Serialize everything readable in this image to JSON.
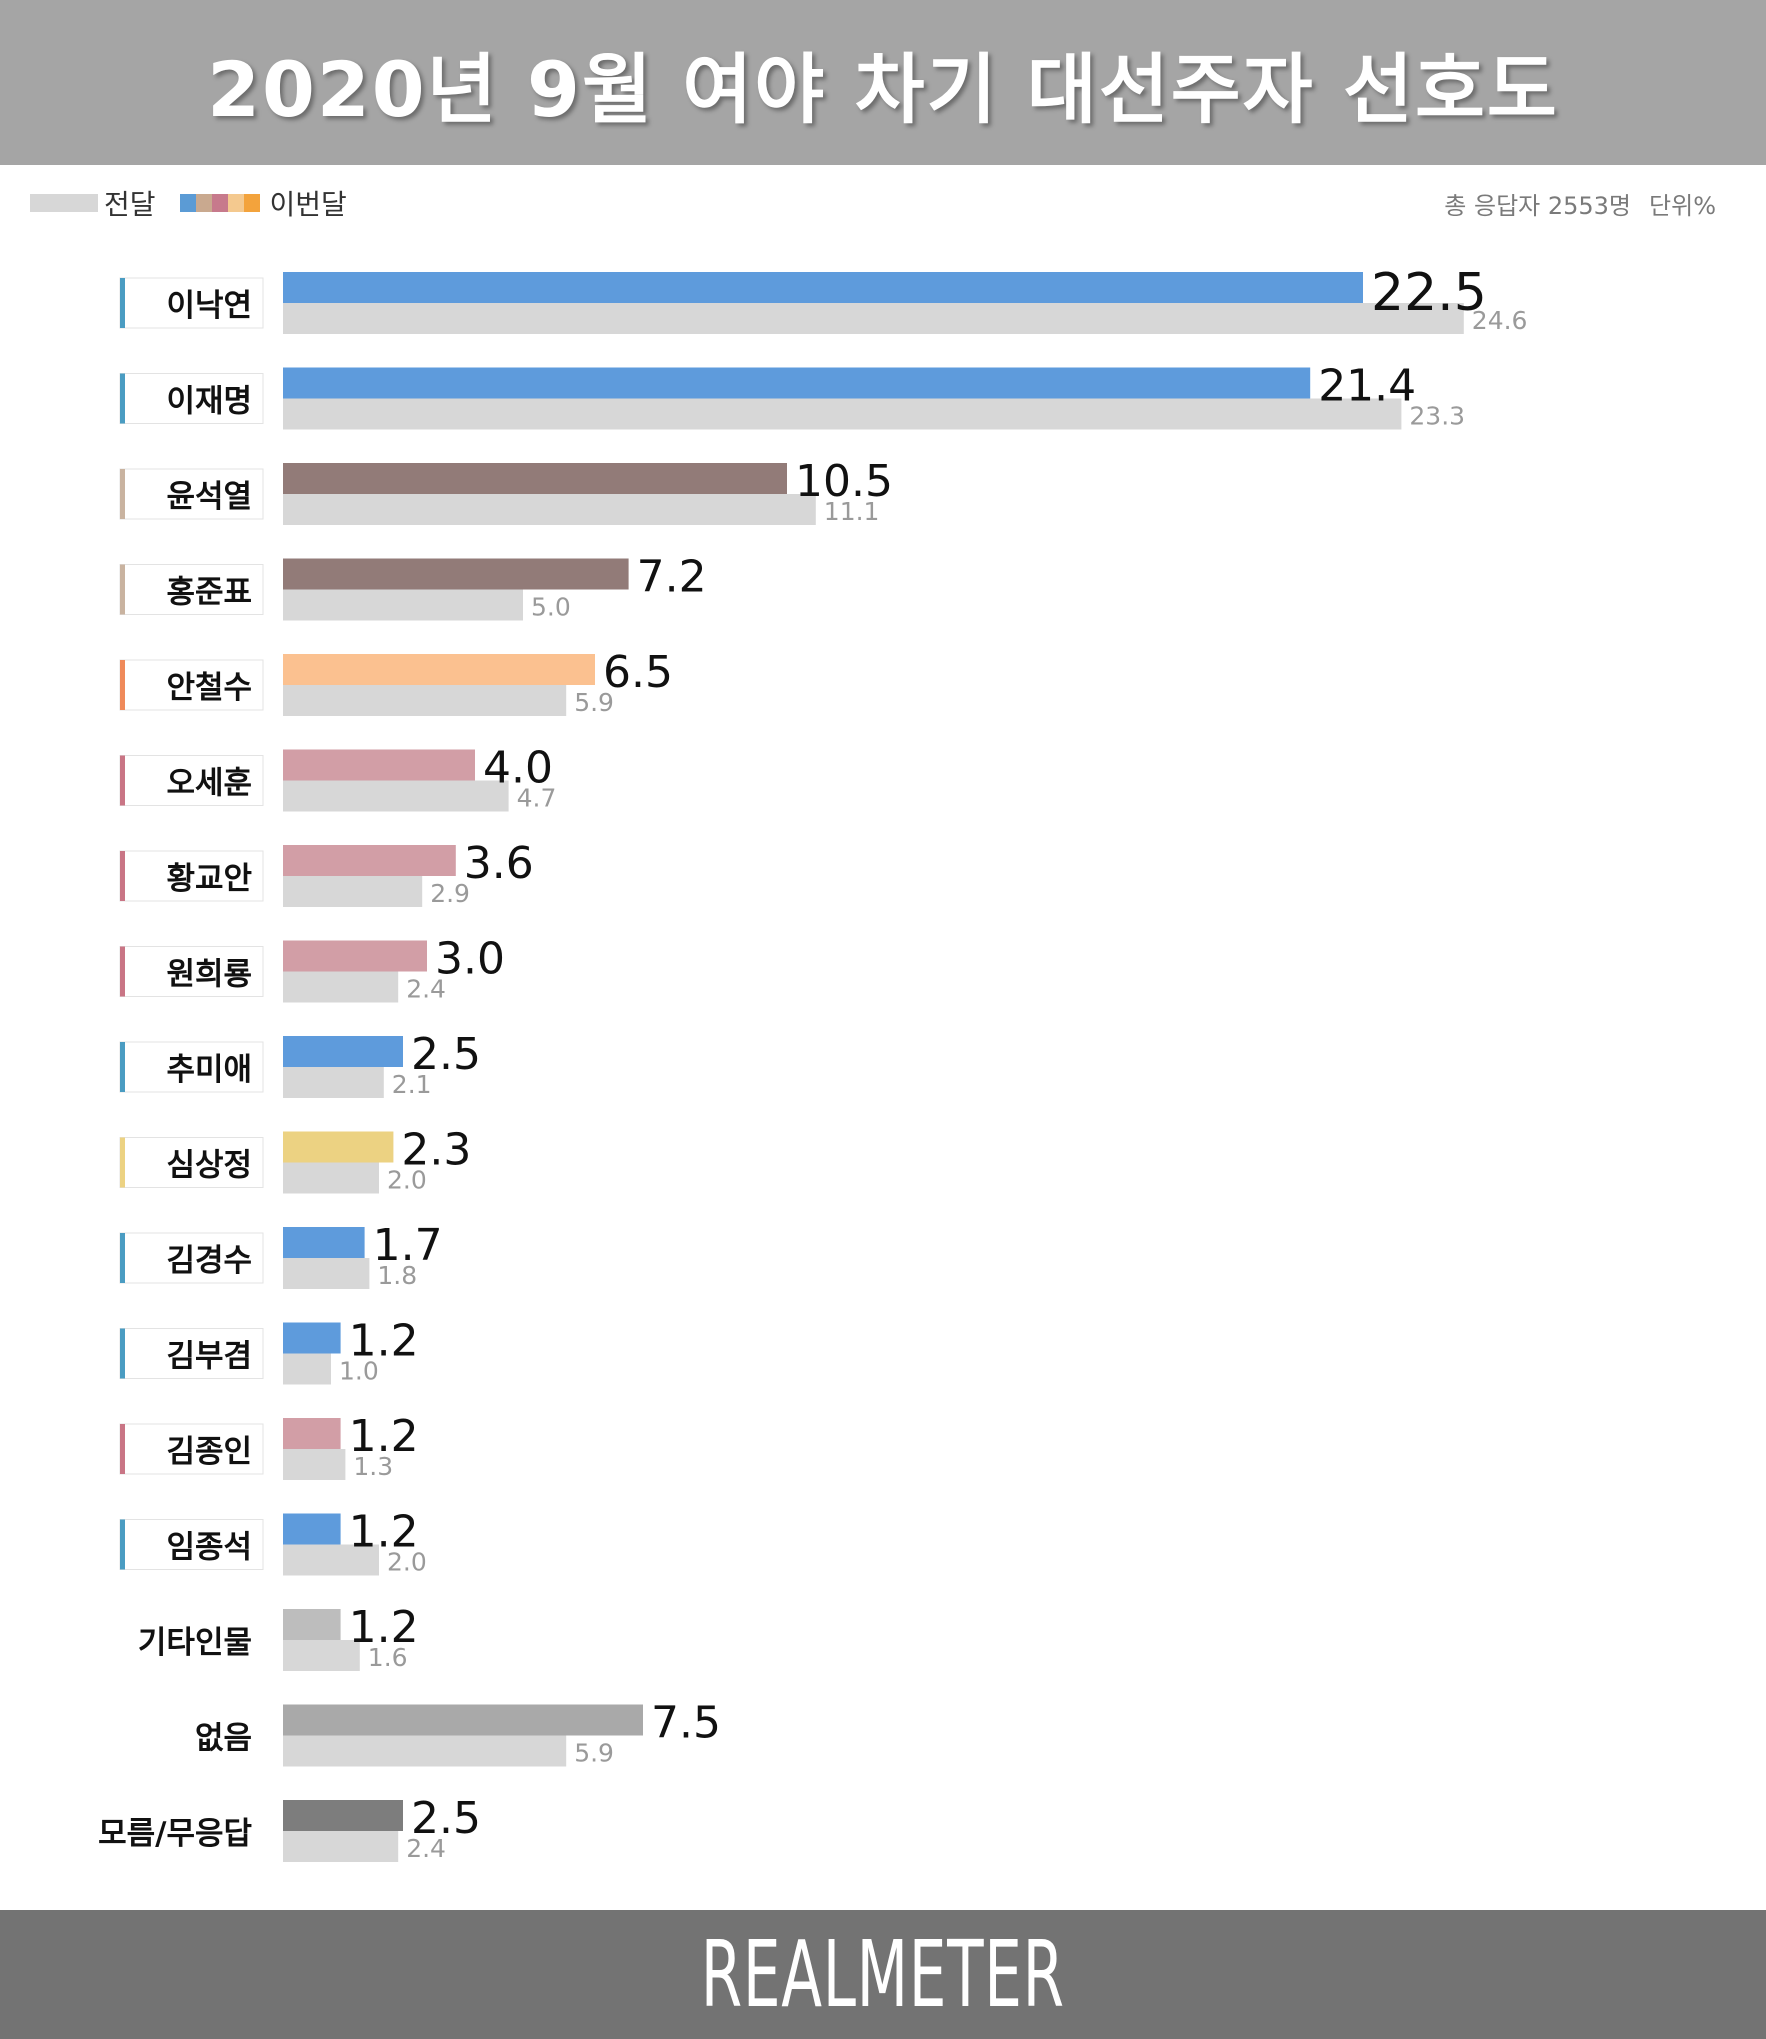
{
  "title": "2020년 9월 여야 차기 대선주자 선호도",
  "legend": {
    "previous": "전달",
    "current": "이번달",
    "current_colors": [
      "#5b9bd5",
      "#c9a98f",
      "#c77a8c",
      "#f4c98f",
      "#f3a33c"
    ]
  },
  "meta": {
    "respondents": "총 응답자 2553명",
    "unit": "단위%"
  },
  "brand": "REALMETER",
  "chart_data": {
    "type": "bar",
    "orientation": "horizontal",
    "series": [
      {
        "name": "이번달",
        "values": [
          22.5,
          21.4,
          10.5,
          7.2,
          6.5,
          4.0,
          3.6,
          3.0,
          2.5,
          2.3,
          1.7,
          1.2,
          1.2,
          1.2,
          1.2,
          7.5,
          2.5
        ]
      },
      {
        "name": "전달",
        "values": [
          24.6,
          23.3,
          11.1,
          5.0,
          5.9,
          4.7,
          2.9,
          2.4,
          2.1,
          2.0,
          1.8,
          1.0,
          1.3,
          2.0,
          1.6,
          5.9,
          2.4
        ]
      }
    ],
    "rows": [
      {
        "name": "이낙연",
        "current": "22.5",
        "previous": "24.6",
        "bar_color": "#5e9bdc",
        "tag_color": "#4a9cc2",
        "highlight": true,
        "tag": true
      },
      {
        "name": "이재명",
        "current": "21.4",
        "previous": "23.3",
        "bar_color": "#5e9bdc",
        "tag_color": "#4a9cc2",
        "tag": true
      },
      {
        "name": "윤석열",
        "current": "10.5",
        "previous": "11.1",
        "bar_color": "#927b78",
        "tag_color": "#c9b3a0",
        "tag": true
      },
      {
        "name": "홍준표",
        "current": "7.2",
        "previous": "5.0",
        "bar_color": "#927b78",
        "tag_color": "#c9b3a0",
        "tag": true
      },
      {
        "name": "안철수",
        "current": "6.5",
        "previous": "5.9",
        "bar_color": "#fbc190",
        "tag_color": "#ef8a5a",
        "tag": true
      },
      {
        "name": "오세훈",
        "current": "4.0",
        "previous": "4.7",
        "bar_color": "#d29ea6",
        "tag_color": "#c97585",
        "tag": true
      },
      {
        "name": "황교안",
        "current": "3.6",
        "previous": "2.9",
        "bar_color": "#d29ea6",
        "tag_color": "#c97585",
        "tag": true
      },
      {
        "name": "원희룡",
        "current": "3.0",
        "previous": "2.4",
        "bar_color": "#d29ea6",
        "tag_color": "#c97585",
        "tag": true
      },
      {
        "name": "추미애",
        "current": "2.5",
        "previous": "2.1",
        "bar_color": "#5e9bdc",
        "tag_color": "#4a9cc2",
        "tag": true
      },
      {
        "name": "심상정",
        "current": "2.3",
        "previous": "2.0",
        "bar_color": "#ecd282",
        "tag_color": "#ecd282",
        "tag": true
      },
      {
        "name": "김경수",
        "current": "1.7",
        "previous": "1.8",
        "bar_color": "#5e9bdc",
        "tag_color": "#4a9cc2",
        "tag": true
      },
      {
        "name": "김부겸",
        "current": "1.2",
        "previous": "1.0",
        "bar_color": "#5e9bdc",
        "tag_color": "#4a9cc2",
        "tag": true
      },
      {
        "name": "김종인",
        "current": "1.2",
        "previous": "1.3",
        "bar_color": "#d29ea6",
        "tag_color": "#c97585",
        "tag": true
      },
      {
        "name": "임종석",
        "current": "1.2",
        "previous": "2.0",
        "bar_color": "#5e9bdc",
        "tag_color": "#4a9cc2",
        "tag": true
      },
      {
        "name": "기타인물",
        "current": "1.2",
        "previous": "1.6",
        "bar_color": "#bdbdbd",
        "tag": false
      },
      {
        "name": "없음",
        "current": "7.5",
        "previous": "5.9",
        "bar_color": "#a9a9a9",
        "tag": false
      },
      {
        "name": "모름/무응답",
        "current": "2.5",
        "previous": "2.4",
        "bar_color": "#7d7d7d",
        "tag": false
      }
    ],
    "colors": {
      "previous": "#d7d7d7",
      "highlight_label": "#5e9bdc"
    },
    "xlim": [
      0,
      25
    ],
    "grid": false
  }
}
